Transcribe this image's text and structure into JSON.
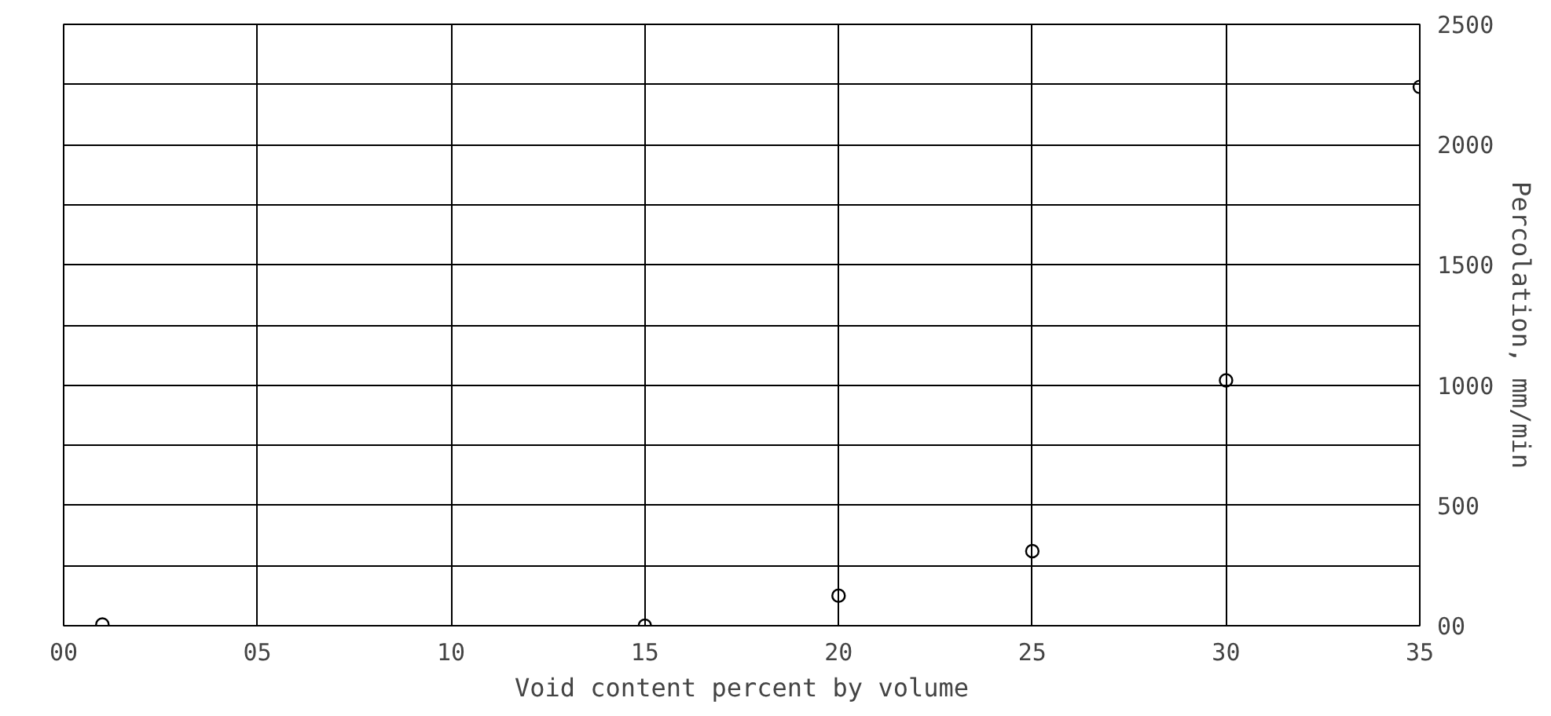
{
  "chart_data": {
    "type": "scatter",
    "xlabel": "Void content percent by volume",
    "ylabel": "Percolation, mm/min",
    "x": [
      1,
      15,
      20,
      25,
      30,
      35
    ],
    "series": [
      {
        "color": "#000000",
        "values": [
          5,
          0,
          125,
          310,
          1020,
          2240
        ]
      }
    ],
    "xlim": [
      0,
      35
    ],
    "ylim": [
      0,
      2500
    ],
    "xticks": [
      {
        "value": 0,
        "label": "00"
      },
      {
        "value": 5,
        "label": "05"
      },
      10,
      15,
      20,
      25,
      30,
      35
    ],
    "yticks": [
      {
        "value": 0,
        "label": "00"
      },
      {
        "value": 250,
        "label": null
      },
      500,
      {
        "value": 750,
        "label": null
      },
      1000,
      {
        "value": 1250,
        "label": null
      },
      1500,
      {
        "value": 1750,
        "label": null
      },
      2000,
      {
        "value": 2250,
        "label": null
      },
      2500
    ],
    "grid": true,
    "marker": "circle"
  }
}
